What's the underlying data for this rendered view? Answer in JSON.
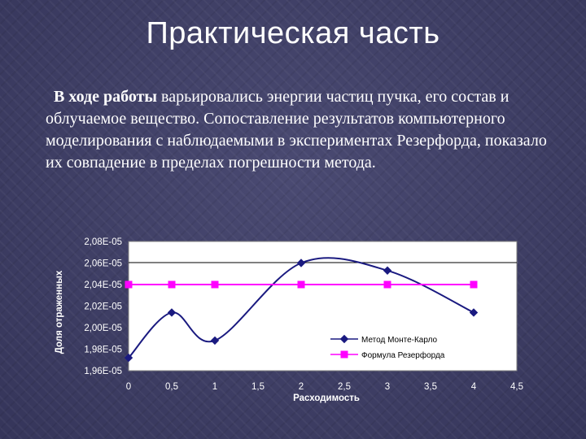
{
  "slide": {
    "title": "Практическая часть",
    "body_bold": "В ходе работы",
    "body_rest": " варьировались энергии частиц пучка, его состав и облучаемое вещество. Сопоставление результатов компьютерного моделирования с наблюдаемыми в экспериментах Резерфорда, показало их совпадение в пределах погрешности метода."
  },
  "chart_data": {
    "type": "line",
    "title": "",
    "xlabel": "Расходимость",
    "ylabel": "Доля отраженных",
    "xlim": [
      0,
      4.5
    ],
    "ylim": [
      1.96e-05,
      2.08e-05
    ],
    "x_ticks": [
      "0",
      "0,5",
      "1",
      "1,5",
      "2",
      "2,5",
      "3",
      "3,5",
      "4",
      "4,5"
    ],
    "y_ticks": [
      "2,08E-05",
      "2,06E-05",
      "2,04E-05",
      "2,02E-05",
      "2,00E-05",
      "1,98E-05",
      "1,96E-05"
    ],
    "legend_position": "bottom-right",
    "series": [
      {
        "name": "Метод Монте-Карло",
        "color": "#1a1a80",
        "marker": "diamond",
        "smooth": true,
        "x": [
          0,
          0.5,
          1,
          2,
          3,
          4
        ],
        "y": [
          1.972e-05,
          2.014e-05,
          1.988e-05,
          2.06e-05,
          2.053e-05,
          2.014e-05
        ]
      },
      {
        "name": "Формула Резерфорда",
        "color": "#ff00ff",
        "marker": "square",
        "smooth": false,
        "x": [
          0,
          0.5,
          1,
          2,
          3,
          4
        ],
        "y": [
          2.04e-05,
          2.04e-05,
          2.04e-05,
          2.04e-05,
          2.04e-05,
          2.04e-05
        ]
      }
    ]
  }
}
